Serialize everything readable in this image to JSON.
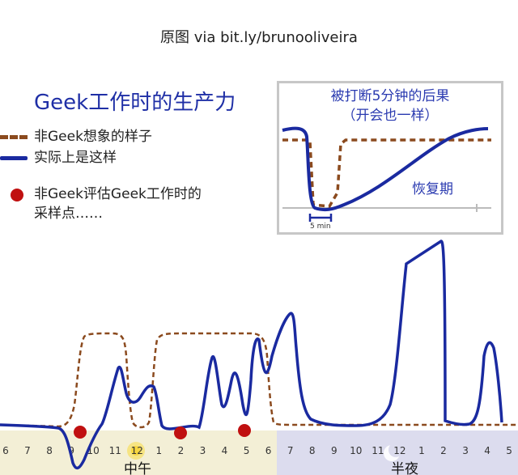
{
  "header": {
    "source": "原图  via  bit.ly/brunooliveira"
  },
  "title": "Geek工作时的生产力",
  "legend": [
    {
      "label": "非Geek想象的样子",
      "kind": "dashed",
      "color": "#8b4a1e"
    },
    {
      "label": "实际上是这样",
      "kind": "solid",
      "color": "#1a2aa0"
    },
    {
      "label": "非Geek评估Geek工作时的",
      "label2": "采样点……",
      "kind": "dot",
      "color": "#c01010"
    }
  ],
  "inset": {
    "title_line1": "被打断5分钟的后果",
    "title_line2": "（开会也一样）",
    "recovery_label": "恢复期",
    "scale_label": "5 min"
  },
  "timeline": {
    "hours": [
      "6",
      "7",
      "8",
      "9",
      "10",
      "11",
      "12",
      "1",
      "2",
      "3",
      "4",
      "5",
      "6",
      "7",
      "8",
      "9",
      "10",
      "11",
      "12",
      "1",
      "2",
      "3",
      "4",
      "5"
    ],
    "noon_label": "中午",
    "midnight_label": "半夜",
    "day_color": "#f3efd6",
    "night_color": "#dcdcee"
  },
  "colors": {
    "actual": "#1a2aa0",
    "imagined": "#8b4a1e",
    "sample": "#c01010",
    "title": "#1f2fa6"
  }
}
